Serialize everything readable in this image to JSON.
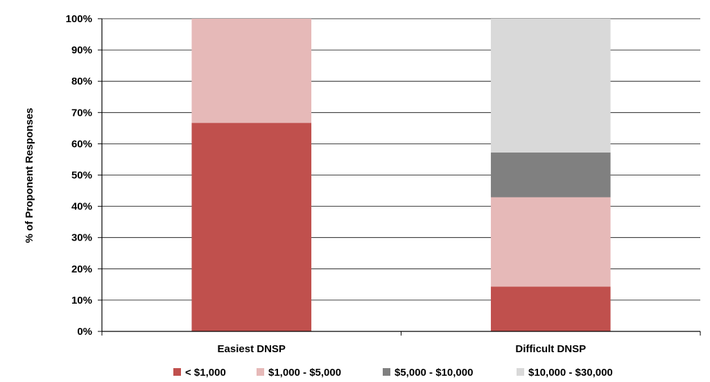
{
  "chart_data": {
    "type": "bar",
    "stacked": true,
    "categories": [
      "Easiest DNSP",
      "Difficult DNSP"
    ],
    "series": [
      {
        "name": "< $1,000",
        "color": "#C0504D",
        "values": [
          66.7,
          14.3
        ]
      },
      {
        "name": "$1,000 - $5,000",
        "color": "#E6B9B8",
        "values": [
          33.3,
          28.6
        ]
      },
      {
        "name": "$5,000 - $10,000",
        "color": "#808080",
        "values": [
          0,
          14.3
        ]
      },
      {
        "name": "$10,000 - $30,000",
        "color": "#D9D9D9",
        "values": [
          0,
          42.8
        ]
      }
    ],
    "ylabel": "% of Proponent Responses",
    "xlabel": "",
    "ylim": [
      0,
      100
    ],
    "yticks": [
      "0%",
      "10%",
      "20%",
      "30%",
      "40%",
      "50%",
      "60%",
      "70%",
      "80%",
      "90%",
      "100%"
    ],
    "grid": true,
    "legend_position": "bottom"
  }
}
